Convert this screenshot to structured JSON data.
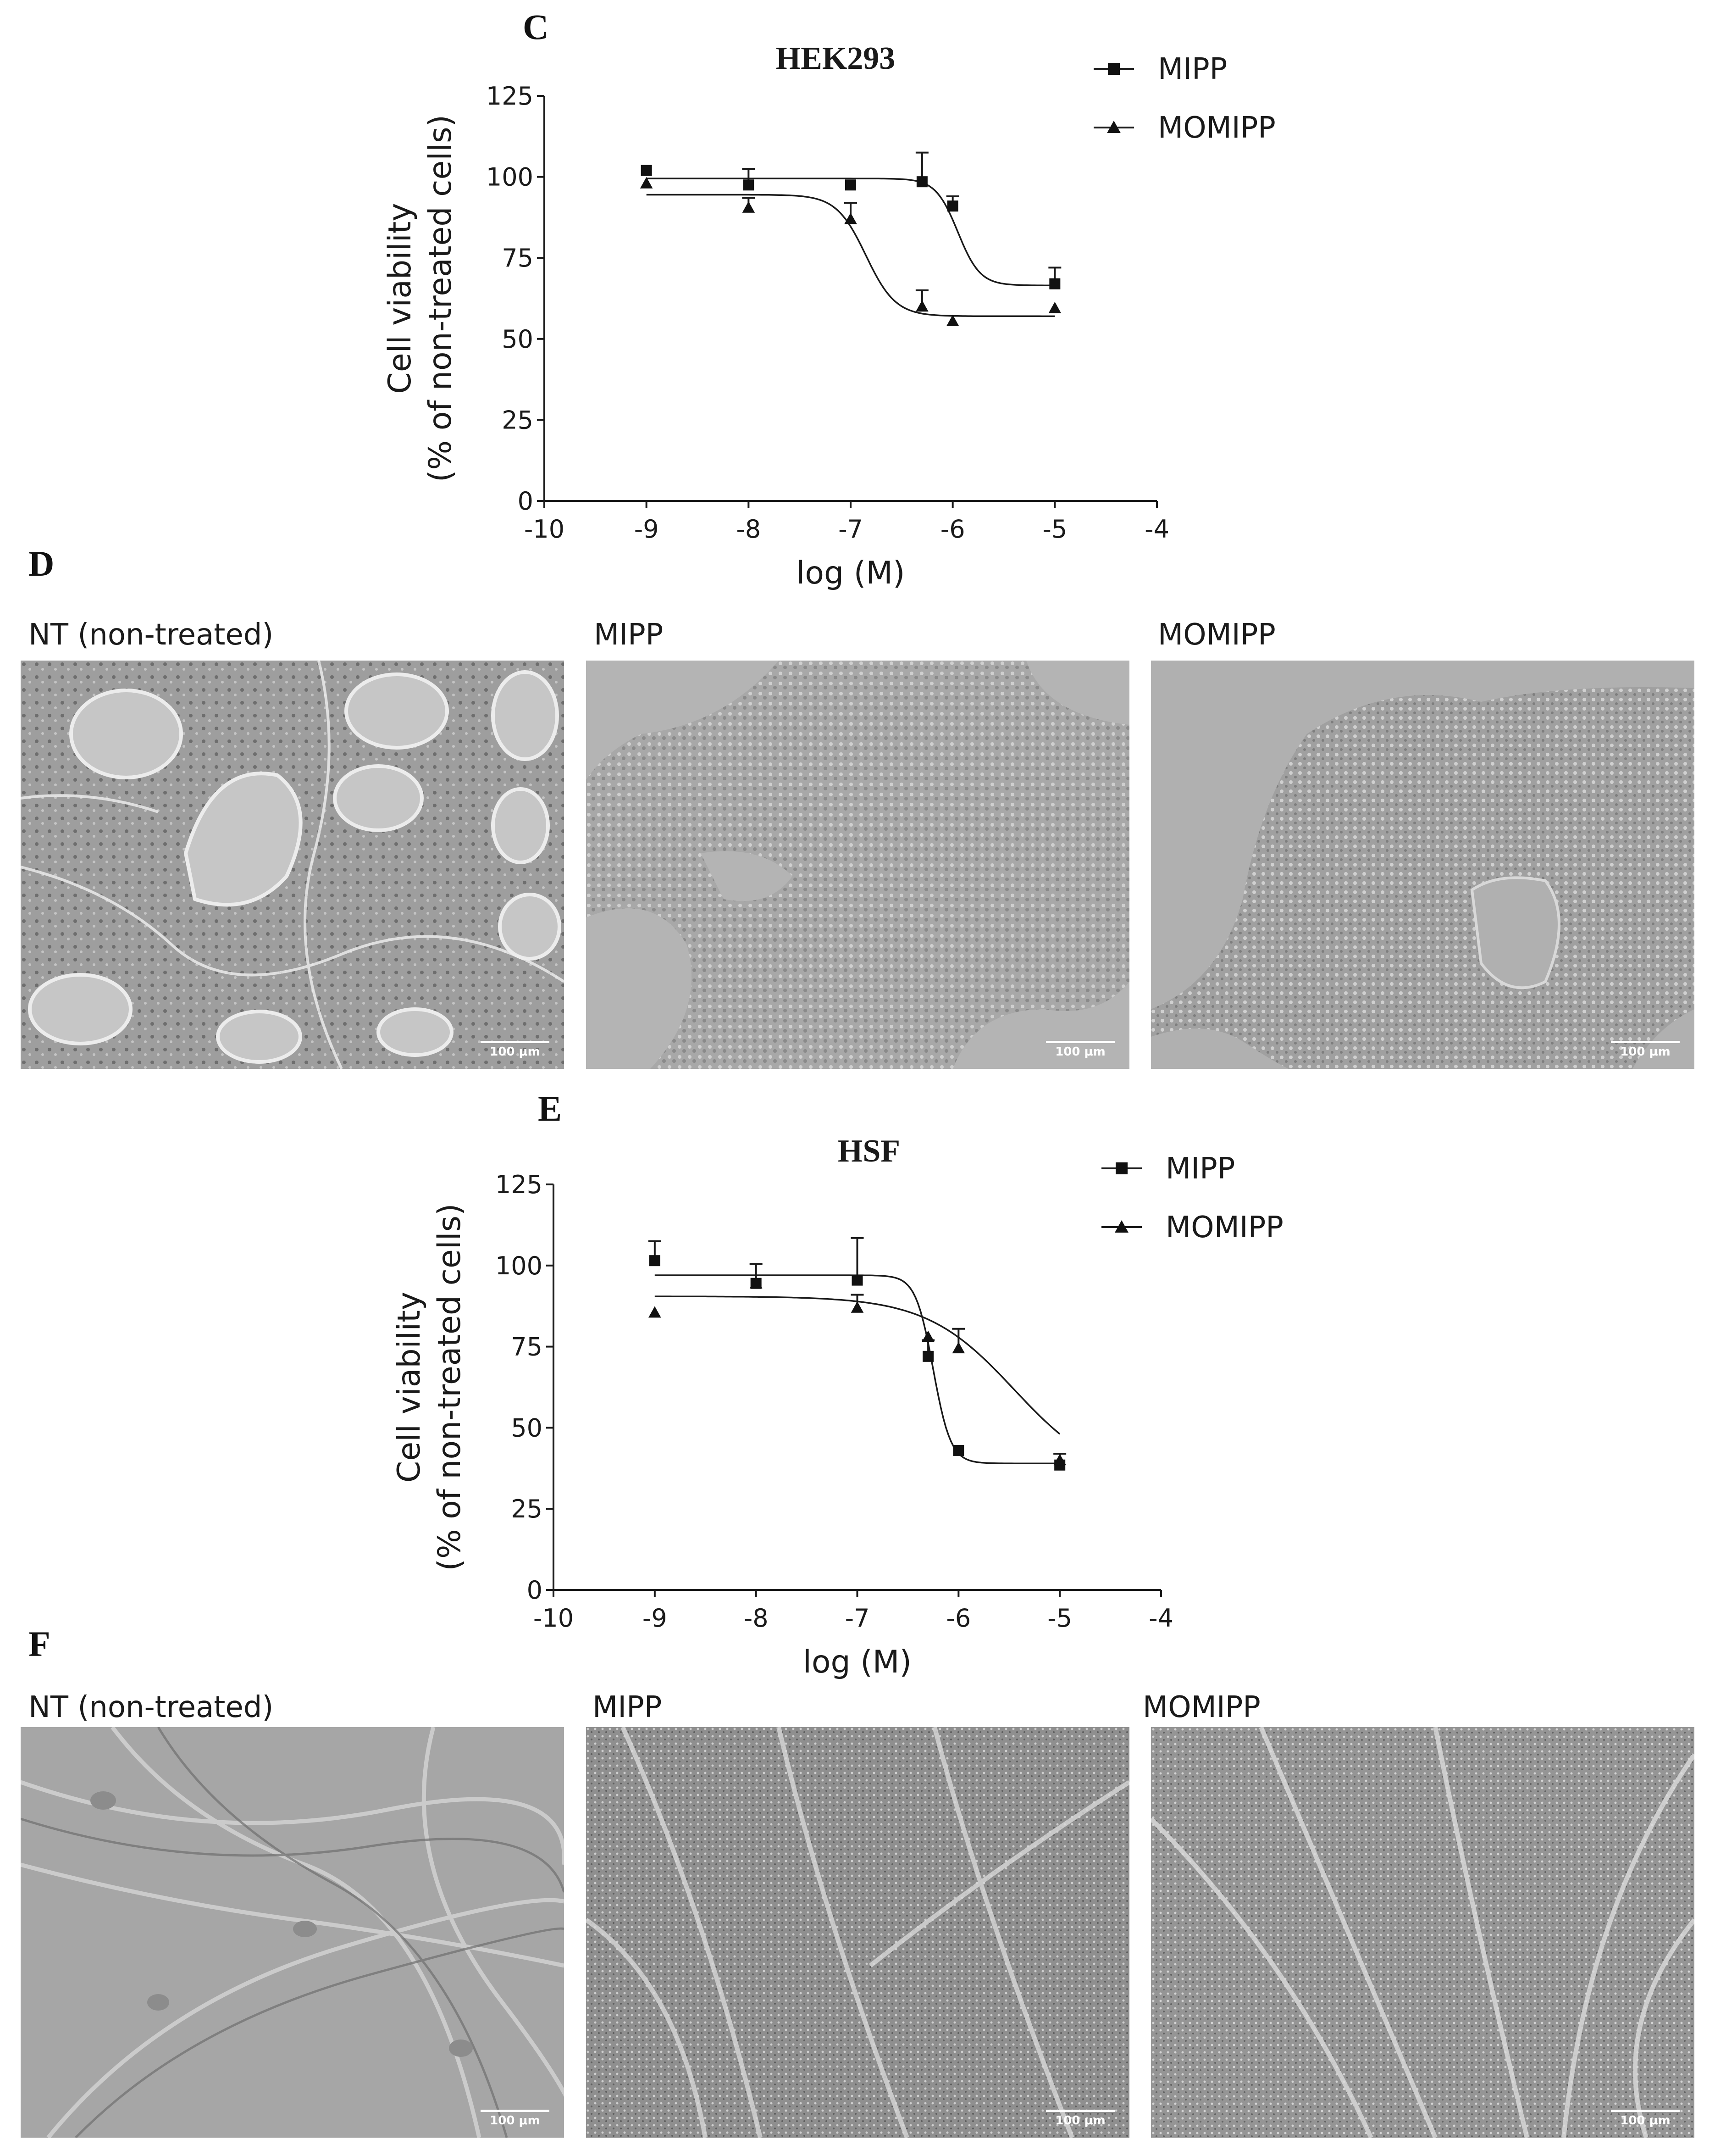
{
  "panels": {
    "c": {
      "letter": "C"
    },
    "d": {
      "letter": "D",
      "labels": [
        "NT (non-treated)",
        "MIPP",
        "MOMIPP"
      ],
      "scale": "100 μm"
    },
    "e": {
      "letter": "E"
    },
    "f": {
      "letter": "F",
      "labels": [
        "NT (non-treated)",
        "MIPP",
        "MOMIPP"
      ],
      "scale": "100 μm"
    }
  },
  "chart_data": [
    {
      "type": "line",
      "title": "HEK293",
      "xlabel": "log (M)",
      "ylabel_lines": [
        "Cell viability",
        "(% of non-treated cells)"
      ],
      "xlim": [
        -10,
        -4
      ],
      "ylim": [
        0,
        125
      ],
      "xticks": [
        -10,
        -9,
        -8,
        -7,
        -6,
        -5,
        -4
      ],
      "yticks": [
        0,
        25,
        50,
        75,
        100,
        125
      ],
      "legend_position": "top-right",
      "series": [
        {
          "name": "MIPP",
          "marker": "square",
          "x": [
            -9,
            -8,
            -7,
            -6.3,
            -6,
            -5
          ],
          "y": [
            102,
            97.5,
            97.5,
            98.5,
            91,
            67
          ],
          "err": [
            0,
            5,
            0,
            9,
            3,
            5
          ],
          "fit": {
            "top": 99.5,
            "bottom": 66.5,
            "logec50": -5.95,
            "hill": -4
          }
        },
        {
          "name": "MOMIPP",
          "marker": "triangle",
          "x": [
            -9,
            -8,
            -7,
            -6.3,
            -6,
            -5
          ],
          "y": [
            98,
            90.5,
            87,
            60,
            55.5,
            59.5
          ],
          "err": [
            0,
            3,
            5,
            5,
            0,
            0
          ],
          "fit": {
            "top": 94.5,
            "bottom": 57,
            "logec50": -6.85,
            "hill": -3
          }
        }
      ]
    },
    {
      "type": "line",
      "title": "HSF",
      "xlabel": "log (M)",
      "ylabel_lines": [
        "Cell viability",
        "(% of non-treated cells)"
      ],
      "xlim": [
        -10,
        -4
      ],
      "ylim": [
        0,
        125
      ],
      "xticks": [
        -10,
        -9,
        -8,
        -7,
        -6,
        -5,
        -4
      ],
      "yticks": [
        0,
        25,
        50,
        75,
        100,
        125
      ],
      "legend_position": "top-right",
      "series": [
        {
          "name": "MIPP",
          "marker": "square",
          "x": [
            -9,
            -8,
            -7,
            -6.3,
            -6,
            -5
          ],
          "y": [
            101.5,
            94.5,
            95.5,
            72,
            43,
            38.5
          ],
          "err": [
            6,
            6,
            13,
            5,
            0,
            0
          ],
          "fit": {
            "top": 97,
            "bottom": 39,
            "logec50": -6.25,
            "hill": -5
          }
        },
        {
          "name": "MOMIPP",
          "marker": "triangle",
          "x": [
            -9,
            -8,
            -7,
            -6.3,
            -6,
            -5
          ],
          "y": [
            85.5,
            94.5,
            87,
            78,
            74.5,
            40
          ],
          "err": [
            0,
            0,
            4,
            0,
            6,
            2
          ],
          "fit": {
            "top": 90.5,
            "bottom": 33,
            "logec50": -5.45,
            "hill": -1
          }
        }
      ]
    }
  ]
}
